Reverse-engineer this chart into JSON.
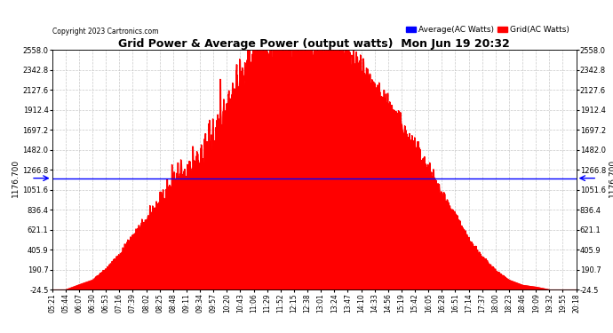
{
  "title": "Grid Power & Average Power (output watts)  Mon Jun 19 20:32",
  "copyright": "Copyright 2023 Cartronics.com",
  "legend_avg": "Average(AC Watts)",
  "legend_grid": "Grid(AC Watts)",
  "avg_color": "#0000ff",
  "grid_color": "#ff0000",
  "fill_color": "#ff0000",
  "avg_line_color": "#0000ff",
  "avg_line_value": 1176.7,
  "avg_label": "1176.700",
  "background_color": "#ffffff",
  "plot_bg_color": "#ffffff",
  "grid_line_color": "#bbbbbb",
  "ylim_min": -24.5,
  "ylim_max": 2558.0,
  "yticks": [
    -24.5,
    190.7,
    405.9,
    621.1,
    836.4,
    1051.6,
    1266.8,
    1482.0,
    1697.2,
    1912.4,
    2127.6,
    2342.8,
    2558.0
  ],
  "xlabel_rotation": 90,
  "time_labels": [
    "05:21",
    "05:44",
    "06:07",
    "06:30",
    "06:53",
    "07:16",
    "07:39",
    "08:02",
    "08:25",
    "08:48",
    "09:11",
    "09:34",
    "09:57",
    "10:20",
    "10:43",
    "11:06",
    "11:29",
    "11:52",
    "12:15",
    "12:38",
    "13:01",
    "13:24",
    "13:47",
    "14:10",
    "14:33",
    "14:56",
    "15:19",
    "15:42",
    "16:05",
    "16:28",
    "16:51",
    "17:14",
    "17:37",
    "18:00",
    "18:23",
    "18:46",
    "19:09",
    "19:32",
    "19:55",
    "20:18"
  ],
  "data_x": [
    0,
    1,
    2,
    3,
    4,
    5,
    6,
    7,
    8,
    9,
    10,
    11,
    12,
    13,
    14,
    15,
    16,
    17,
    18,
    19,
    20,
    21,
    22,
    23,
    24,
    25,
    26,
    27,
    28,
    29,
    30,
    31,
    32,
    33,
    34,
    35,
    36,
    37,
    38,
    39
  ],
  "data_y": [
    -24.5,
    -24.5,
    30,
    80,
    200,
    350,
    550,
    720,
    900,
    1050,
    1150,
    1300,
    1600,
    1900,
    2200,
    2450,
    2510,
    2530,
    2545,
    2540,
    2530,
    2510,
    2480,
    2300,
    2100,
    1900,
    1700,
    1480,
    1250,
    1000,
    750,
    500,
    320,
    180,
    80,
    25,
    5,
    -24.5,
    -24.5,
    -24.5
  ],
  "noise_seed": 42
}
